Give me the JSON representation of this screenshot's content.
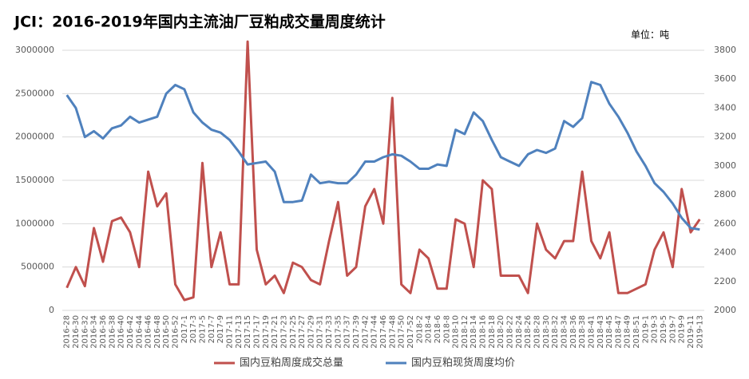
{
  "chart_data": {
    "type": "line",
    "title": "JCI：2016-2019年国内主流油厂豆粕成交量周度统计",
    "unit": "单位：吨",
    "categories": [
      "2016-28",
      "2016-30",
      "2016-32",
      "2016-34",
      "2016-36",
      "2016-38",
      "2016-40",
      "2016-42",
      "2016-44",
      "2016-46",
      "2016-48",
      "2016-50",
      "2016-52",
      "2017-1",
      "2017-3",
      "2017-5",
      "2017-7",
      "2017-9",
      "2017-11",
      "2017-13",
      "2017-15",
      "2017-17",
      "2017-19",
      "2017-21",
      "2017-23",
      "2017-25",
      "2017-27",
      "2017-29",
      "2017-31",
      "2017-33",
      "2017-35",
      "2017-37",
      "2017-39",
      "2017-42",
      "2017-44",
      "2017-46",
      "2017-48",
      "2017-50",
      "2017-52",
      "2018-2",
      "2018-4",
      "2018-6",
      "2018-8",
      "2018-10",
      "2018-12",
      "2018-14",
      "2018-16",
      "2018-18",
      "2018-20",
      "2018-22",
      "2018-24",
      "2018-26",
      "2018-28",
      "2018-30",
      "2018-32",
      "2018-34",
      "2018-36",
      "2018-38",
      "2018-41",
      "2018-43",
      "2018-45",
      "2018-47",
      "2018-49",
      "2018-51",
      "2019-1",
      "2019-3",
      "2019-5",
      "2019-7",
      "2019-9",
      "2019-11",
      "2019-13"
    ],
    "series": [
      {
        "name": "国内豆粕周度成交总量",
        "color": "#c0504d",
        "values": [
          260000,
          500000,
          280000,
          950000,
          560000,
          1030000,
          1070000,
          900000,
          500000,
          1600000,
          1200000,
          1350000,
          300000,
          120000,
          150000,
          1700000,
          500000,
          900000,
          300000,
          300000,
          3100000,
          700000,
          300000,
          400000,
          200000,
          550000,
          500000,
          350000,
          300000,
          800000,
          1250000,
          400000,
          500000,
          1200000,
          1400000,
          1000000,
          2450000,
          300000,
          200000,
          700000,
          600000,
          250000,
          250000,
          1050000,
          1000000,
          500000,
          1500000,
          1400000,
          400000,
          400000,
          400000,
          200000,
          1000000,
          700000,
          600000,
          800000,
          800000,
          1600000,
          800000,
          600000,
          900000,
          200000,
          200000,
          250000,
          300000,
          700000,
          900000,
          500000,
          1400000,
          900000,
          1050000
        ]
      },
      {
        "name": "国内豆粕现货周度均价",
        "color": "#4f81bd",
        "axis": "y2",
        "values": [
          3490,
          3400,
          3200,
          3240,
          3190,
          3260,
          3280,
          3340,
          3300,
          3320,
          3340,
          3500,
          3560,
          3530,
          3370,
          3300,
          3250,
          3230,
          3180,
          3100,
          3010,
          3020,
          3030,
          2960,
          2750,
          2750,
          2760,
          2940,
          2880,
          2890,
          2880,
          2880,
          2940,
          3030,
          3030,
          3060,
          3080,
          3070,
          3030,
          2980,
          2980,
          3010,
          3000,
          3250,
          3220,
          3370,
          3310,
          3180,
          3060,
          3030,
          3000,
          3080,
          3110,
          3090,
          3120,
          3310,
          3270,
          3330,
          3580,
          3560,
          3430,
          3340,
          3230,
          3100,
          3000,
          2880,
          2820,
          2740,
          2640,
          2570,
          2560
        ]
      }
    ],
    "ylim": [
      0,
      3000000
    ],
    "yticks": [
      0,
      500000,
      1000000,
      1500000,
      2000000,
      2500000,
      3000000
    ],
    "y2lim": [
      2000,
      3800
    ],
    "y2ticks": [
      2000,
      2200,
      2400,
      2600,
      2800,
      3000,
      3200,
      3400,
      3600,
      3800
    ],
    "grid": true
  }
}
